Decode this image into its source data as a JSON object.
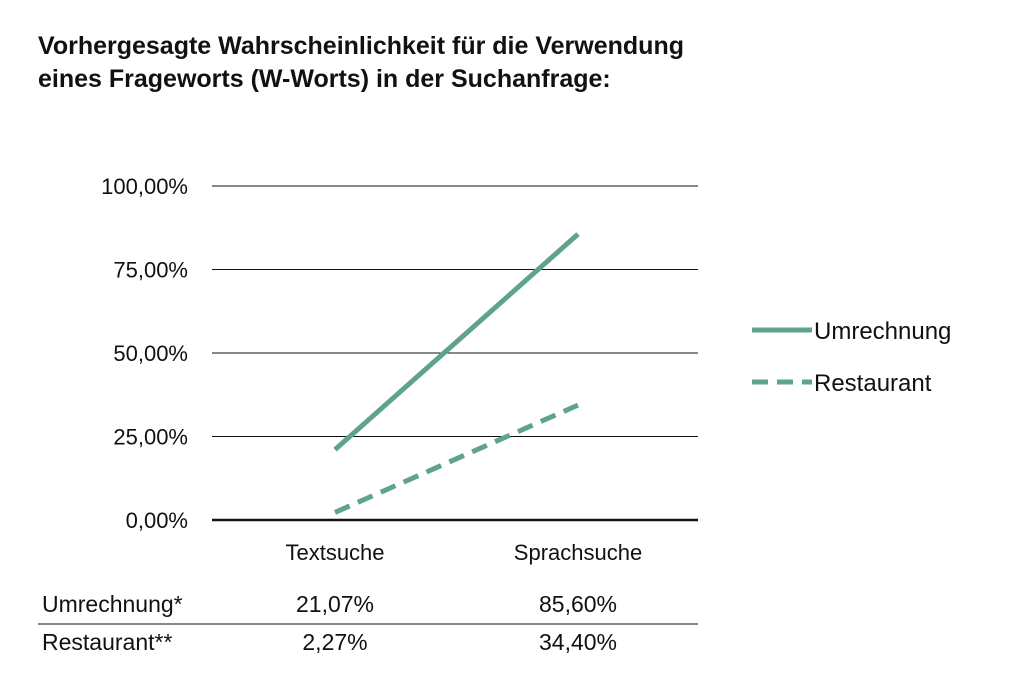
{
  "chart_data": {
    "type": "line",
    "title_lines": [
      "Vorhergesagte Wahrscheinlichkeit für die Verwendung",
      "eines Frageworts (W-Worts) in der Suchanfrage:"
    ],
    "categories": [
      "Textsuche",
      "Sprachsuche"
    ],
    "ylim": [
      0,
      100
    ],
    "y_ticks": [
      0,
      25,
      50,
      75,
      100
    ],
    "y_tick_labels": [
      "0,00%",
      "25,00%",
      "50,00%",
      "75,00%",
      "100,00%"
    ],
    "grid": true,
    "legend_position": "right",
    "series": [
      {
        "name": "Umrechnung",
        "values": [
          21.07,
          85.6
        ],
        "style": "solid",
        "color": "#5fa38c"
      },
      {
        "name": "Restaurant",
        "values": [
          2.27,
          34.4
        ],
        "style": "dashed",
        "color": "#5fa38c"
      }
    ],
    "table": {
      "rows": [
        {
          "label": "Umrechnung*",
          "values": [
            "21,07%",
            "85,60%"
          ]
        },
        {
          "label": "Restaurant**",
          "values": [
            "2,27%",
            "34,40%"
          ]
        }
      ]
    }
  }
}
